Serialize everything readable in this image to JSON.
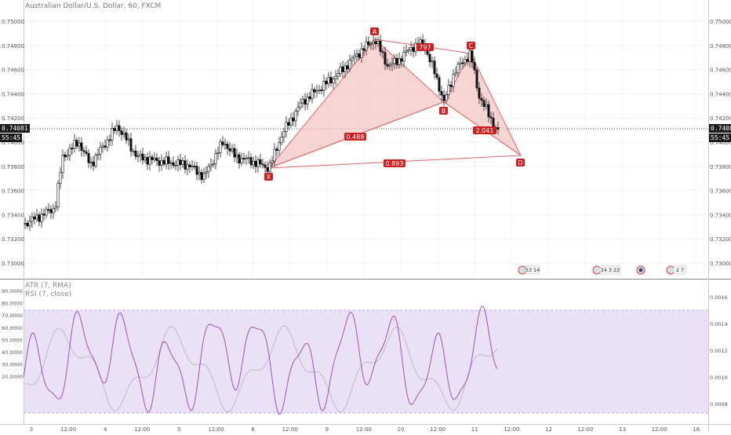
{
  "title": "Australian Dollar/U.S. Dollar, 60, FXCM",
  "last_price": "0.74081",
  "countdown": "55:45",
  "price_axis": [
    "0.75000",
    "0.74800",
    "0.74600",
    "0.74400",
    "0.74200",
    "0.74000",
    "0.73800",
    "0.73600",
    "0.73400",
    "0.73200",
    "0.73000"
  ],
  "time_axis": [
    "3",
    "12:00",
    "4",
    "12:00",
    "5",
    "12:00",
    "6",
    "12:00",
    "9",
    "12:00",
    "10",
    "12:00",
    "11",
    "12:00",
    "12",
    "12:00",
    "13",
    "12:00",
    "16"
  ],
  "pattern": {
    "points": [
      "X",
      "A",
      "B",
      "C",
      "D"
    ],
    "ratios": {
      "xb": "0.488",
      "ac": "797",
      "bd": "2.041",
      "xd": "0.893"
    },
    "fill": "#f4c7c7",
    "stroke": "#e06666",
    "label_bg": "#cc1f1f"
  },
  "events": [
    {
      "label": "53 14"
    },
    {
      "label": "34 3 22"
    },
    {
      "label": ""
    },
    {
      "label": "2 7"
    }
  ],
  "indicators": {
    "atr": "ATR (7, RMA)",
    "rsi": "RSI (7, close)",
    "rsi_levels": [
      "90.0000",
      "80.0000",
      "70.0000",
      "60.0000",
      "50.0000",
      "40.0000",
      "30.0000",
      "20.0000"
    ],
    "atr_levels": [
      "0.0016",
      "0.0014",
      "0.0012",
      "0.0010",
      "0.0008"
    ],
    "rsi_color": "#9c4fc4",
    "atr_color": "#bdbdbd",
    "band_color": "#e8dcf5"
  }
}
